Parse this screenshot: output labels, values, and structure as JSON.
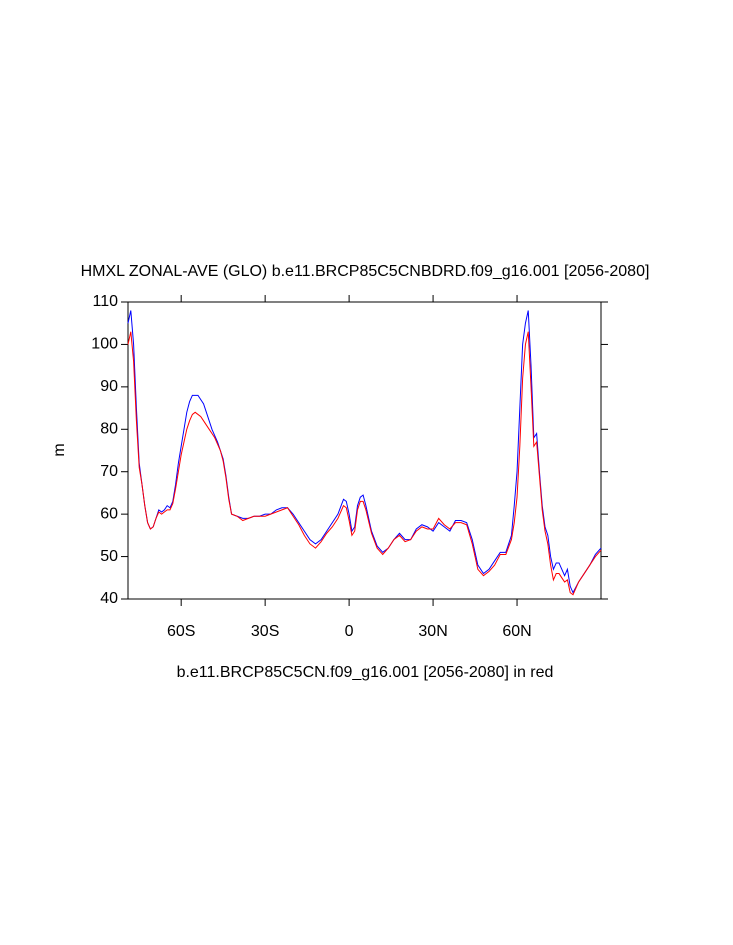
{
  "chart_data": {
    "type": "line",
    "title": "HMXL ZONAL-AVE (GLO) b.e11.BRCP85C5CNBDRD.f09_g16.001 [2056-2080]",
    "x_label": "b.e11.BRCP85C5CN.f09_g16.001 [2056-2080] in red",
    "y_label": "m",
    "x": [
      -79,
      -78,
      -77,
      -76,
      -75,
      -74,
      -73,
      -72,
      -71,
      -70,
      -69,
      -68,
      -67,
      -66,
      -65,
      -64,
      -63,
      -62,
      -61,
      -60,
      -59,
      -58,
      -57,
      -56,
      -55,
      -54,
      -53,
      -52,
      -51,
      -50,
      -49,
      -48,
      -47,
      -46,
      -45,
      -44,
      -43,
      -42,
      -40,
      -38,
      -36,
      -34,
      -32,
      -30,
      -28,
      -26,
      -24,
      -22,
      -20,
      -18,
      -16,
      -14,
      -12,
      -10,
      -8,
      -6,
      -4,
      -2,
      -1,
      0,
      1,
      2,
      3,
      4,
      5,
      6,
      8,
      10,
      12,
      14,
      16,
      18,
      20,
      22,
      24,
      26,
      28,
      30,
      32,
      34,
      36,
      38,
      40,
      42,
      44,
      46,
      48,
      50,
      52,
      54,
      56,
      58,
      59,
      60,
      61,
      62,
      63,
      64,
      65,
      66,
      67,
      68,
      69,
      70,
      71,
      72,
      73,
      74,
      75,
      76,
      77,
      78,
      79,
      80,
      82,
      84,
      86,
      88,
      90
    ],
    "series": [
      {
        "color": "#0000ff",
        "values": [
          105,
          108,
          100,
          85,
          72,
          67,
          62,
          58,
          56.5,
          57,
          59,
          61,
          60.5,
          61,
          62,
          61.5,
          63,
          67,
          72,
          76,
          80,
          84,
          86.5,
          88,
          88,
          88,
          87,
          86,
          84,
          82,
          80,
          78.5,
          77,
          75,
          73,
          69,
          64,
          60,
          59.5,
          59,
          59,
          59.5,
          59.5,
          60,
          60,
          61,
          61.5,
          61.5,
          60,
          58,
          56,
          54,
          53,
          54,
          56,
          58,
          60,
          63.5,
          63,
          60,
          56,
          57,
          62,
          64,
          64.5,
          62,
          56,
          52.5,
          51,
          52,
          54,
          55.5,
          54,
          54,
          56.5,
          57.5,
          57,
          56,
          58,
          57,
          56,
          58.5,
          58.5,
          58,
          54,
          48,
          46,
          47,
          49,
          51,
          51,
          55,
          62,
          70,
          85,
          100,
          105,
          108,
          95,
          78,
          79,
          70,
          62,
          57,
          55,
          50,
          47,
          48.5,
          48.5,
          47,
          45.5,
          47,
          43,
          41.5,
          44,
          46,
          48,
          50.5,
          52
        ]
      },
      {
        "color": "#ff0000",
        "values": [
          100,
          103,
          96,
          82,
          71,
          67,
          62,
          58,
          56.5,
          57,
          59,
          60.5,
          60,
          60.5,
          61,
          61,
          62.5,
          66,
          70,
          74,
          77,
          80,
          82,
          83.5,
          84,
          83.5,
          83,
          82,
          81,
          80,
          79,
          78,
          76.5,
          75,
          72.5,
          68.5,
          63.5,
          60,
          59.5,
          58.5,
          59,
          59.5,
          59.5,
          59.5,
          60,
          60.5,
          61,
          61.5,
          59.5,
          57.5,
          55,
          53,
          52,
          53.5,
          55.5,
          57,
          59,
          62,
          61.5,
          58.5,
          55,
          56,
          61,
          63,
          63,
          61,
          55.5,
          52,
          50.5,
          52,
          54,
          55,
          53.5,
          54,
          56,
          57,
          56.5,
          56.5,
          59,
          57.5,
          56.5,
          58,
          58,
          57.5,
          53,
          47,
          45.5,
          46.5,
          48,
          50.5,
          50.5,
          54,
          58,
          64,
          76,
          92,
          100,
          103,
          90,
          76,
          77,
          69,
          61,
          56,
          53,
          48,
          44.5,
          46,
          46,
          45,
          44,
          44.5,
          41.5,
          41,
          44,
          46,
          48,
          50,
          51.5
        ]
      }
    ],
    "xlim": [
      -79,
      90
    ],
    "xticks": [
      {
        "value": -60,
        "label": "60S"
      },
      {
        "value": -30,
        "label": "30S"
      },
      0,
      {
        "value": 30,
        "label": "30N"
      },
      {
        "value": 60,
        "label": "60N"
      }
    ],
    "ylim": [
      40,
      110
    ],
    "yticks": [
      40,
      50,
      60,
      70,
      80,
      90,
      100,
      110
    ]
  }
}
